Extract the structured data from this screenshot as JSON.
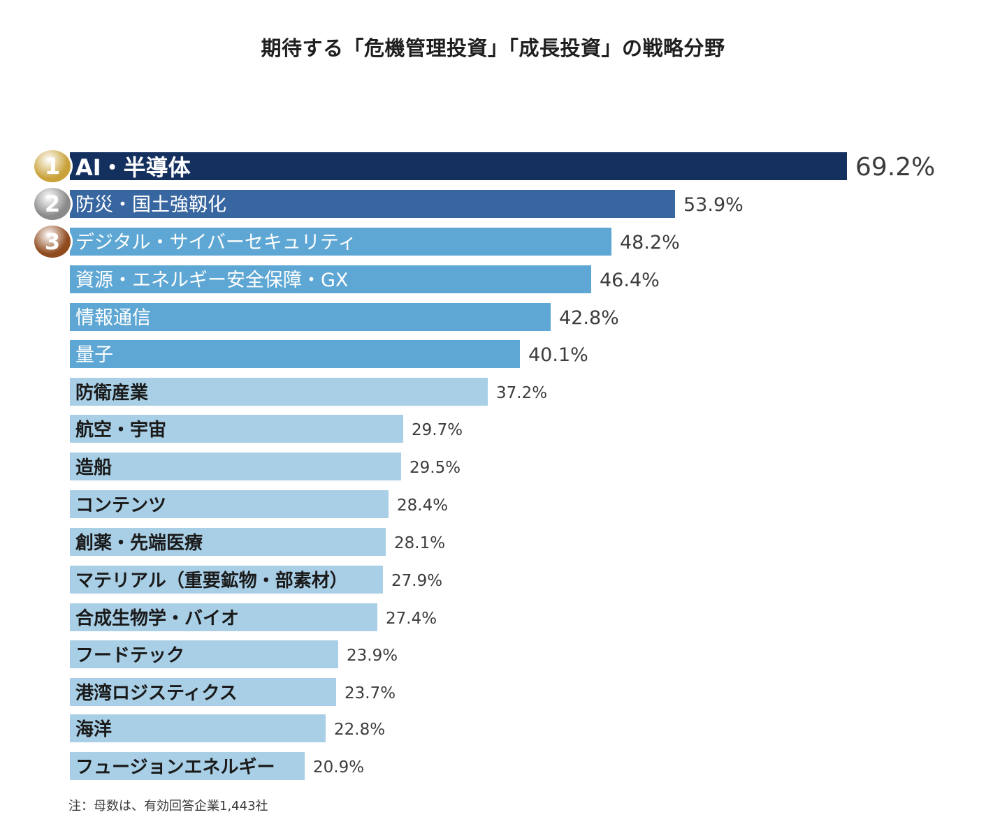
{
  "chart_data": {
    "type": "bar",
    "orientation": "horizontal",
    "title": "期待する「危機管理投資」「成長投資」の戦略分野",
    "xlabel": "",
    "ylabel": "",
    "xlim": [
      0,
      69.2
    ],
    "grid": false,
    "unit": "%",
    "categories": [
      "AI・半導体",
      "防災・国土強靱化",
      "デジタル・サイバーセキュリティ",
      "資源・エネルギー安全保障・GX",
      "情報通信",
      "量子",
      "防衛産業",
      "航空・宇宙",
      "造船",
      "コンテンツ",
      "創薬・先端医療",
      "マテリアル（重要鉱物・部素材）",
      "合成生物学・バイオ",
      "フードテック",
      "港湾ロジスティクス",
      "海洋",
      "フュージョンエネルギー"
    ],
    "values": [
      69.2,
      53.9,
      48.2,
      46.4,
      42.8,
      40.1,
      37.2,
      29.7,
      29.5,
      28.4,
      28.1,
      27.9,
      27.4,
      23.9,
      23.7,
      22.8,
      20.9
    ],
    "value_labels": [
      "69.2%",
      "53.9%",
      "48.2%",
      "46.4%",
      "42.8%",
      "40.1%",
      "37.2%",
      "29.7%",
      "29.5%",
      "28.4%",
      "28.1%",
      "27.9%",
      "27.4%",
      "23.9%",
      "23.7%",
      "22.8%",
      "20.9%"
    ],
    "rank_badges": [
      "1",
      "2",
      "3"
    ],
    "colors": {
      "rank1": "#14305f",
      "rank2": "#3766a0",
      "mid": "#5ea7d4",
      "light": "#a9cfe6",
      "badge_gold": "#c9a23a",
      "badge_silver": "#8a8a8a",
      "badge_bronze": "#8f4a1e"
    },
    "note": "注：母数は、有効回答企業1,443社"
  }
}
